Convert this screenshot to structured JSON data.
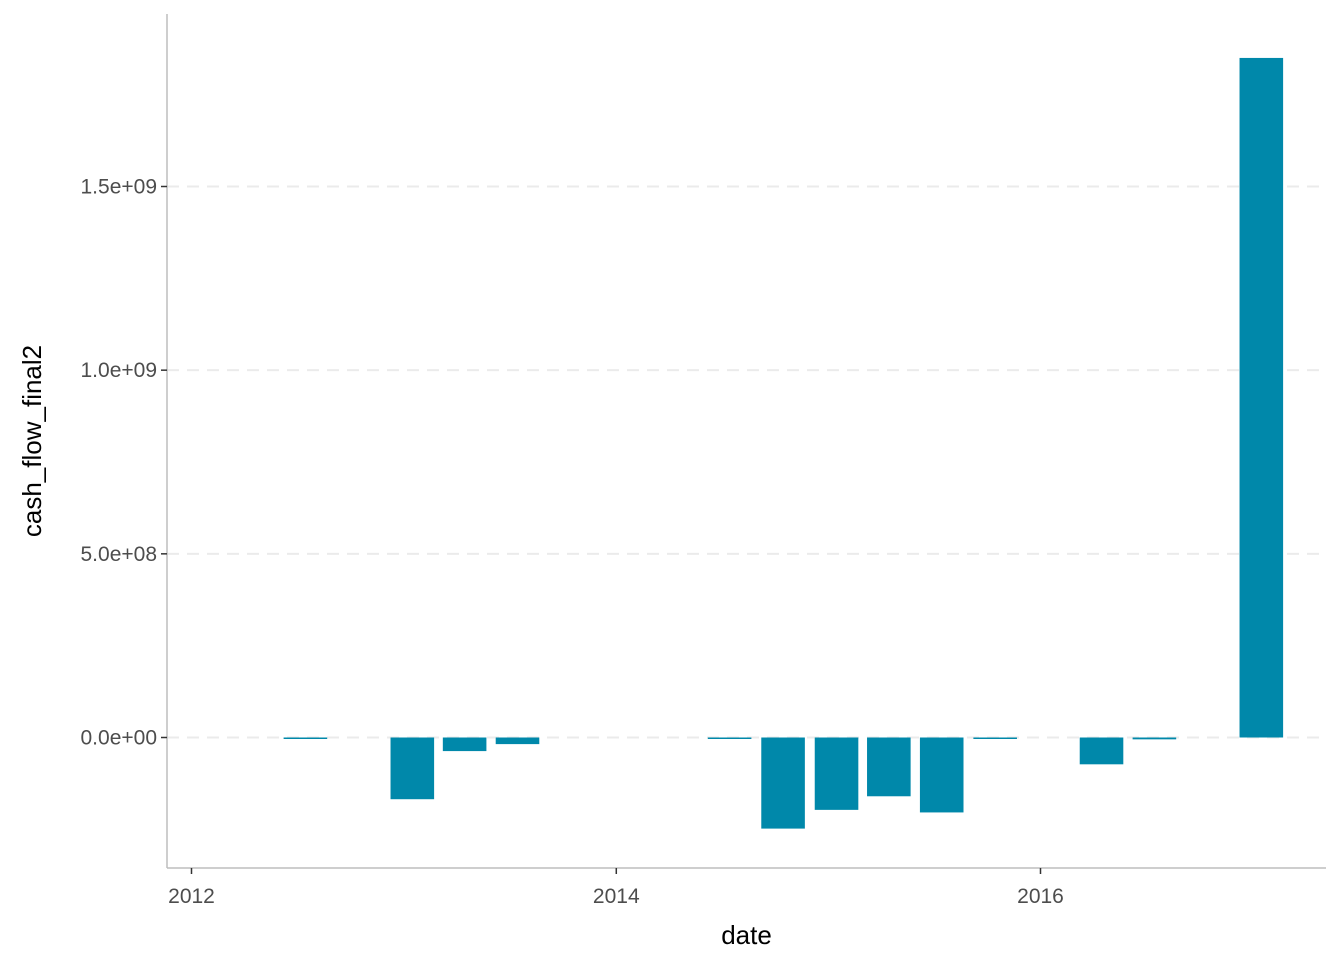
{
  "chart_data": {
    "type": "bar",
    "title": "",
    "xlabel": "date",
    "ylabel": "cash_flow_final2",
    "bar_color": "#0088aa",
    "grid": {
      "horizontal": true,
      "vertical": false,
      "style": "dashed"
    },
    "legend": "none",
    "xlim": [
      "2011-12-01",
      "2017-05-01"
    ],
    "ylim": [
      -360000000,
      1960000000
    ],
    "x_ticks": [
      {
        "value": "2012-01-01",
        "label": "2012"
      },
      {
        "value": "2014-01-01",
        "label": "2014"
      },
      {
        "value": "2016-01-01",
        "label": "2016"
      }
    ],
    "y_ticks": [
      {
        "value": 0,
        "label": "0.0e+00"
      },
      {
        "value": 500000000,
        "label": "5.0e+08"
      },
      {
        "value": 1000000000,
        "label": "1.0e+09"
      },
      {
        "value": 1500000000,
        "label": "1.5e+09"
      }
    ],
    "bars": [
      {
        "date": "2012-07-15",
        "value": -2000000
      },
      {
        "date": "2013-01-15",
        "value": -168000000
      },
      {
        "date": "2013-04-15",
        "value": -37000000
      },
      {
        "date": "2013-07-15",
        "value": -18000000
      },
      {
        "date": "2014-07-15",
        "value": -2000000
      },
      {
        "date": "2014-10-15",
        "value": -248000000
      },
      {
        "date": "2015-01-15",
        "value": -197000000
      },
      {
        "date": "2015-04-15",
        "value": -160000000
      },
      {
        "date": "2015-07-15",
        "value": -204000000
      },
      {
        "date": "2015-10-15",
        "value": -2000000
      },
      {
        "date": "2016-04-15",
        "value": -73000000
      },
      {
        "date": "2016-07-15",
        "value": -5000000
      },
      {
        "date": "2017-01-15",
        "value": 1850000000
      }
    ]
  }
}
